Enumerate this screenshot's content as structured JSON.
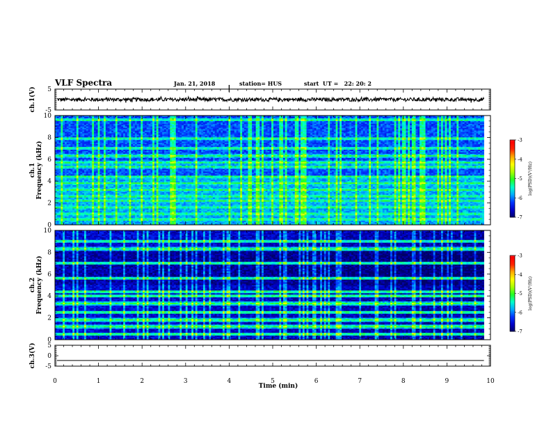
{
  "header": {
    "title": "VLF Spectra",
    "date": "Jan. 21, 2018",
    "station": "station= HUS",
    "start": "start  UT =   22: 20: 2"
  },
  "chart_data": [
    {
      "type": "line",
      "panel": "ch1-waveform",
      "ylabel": "ch.1(V)",
      "ylim": [
        -5,
        5
      ],
      "yticks": [
        "5",
        "-5"
      ],
      "xlim": [
        0,
        10
      ],
      "x_end": 9.85,
      "baseline": 0,
      "noise_amplitude": 0.9
    },
    {
      "type": "heatmap",
      "panel": "ch1-spectrogram",
      "ylabel": "ch.1\nFrequency (kHz)",
      "ylim": [
        0,
        10
      ],
      "yticks": [
        "0",
        "2",
        "4",
        "6",
        "8",
        "10"
      ],
      "xlim": [
        0,
        10
      ],
      "x_end": 9.85,
      "tones_khz": [
        0.5,
        1.0,
        1.6,
        2.2,
        2.6,
        3.2,
        3.8,
        4.4,
        5.3,
        5.7,
        6.3,
        7.0,
        7.9,
        9.6
      ],
      "colorbar": {
        "label": "log(PSD)(V²/Hz)",
        "range": [
          -7,
          -3
        ],
        "ticks": [
          "-3",
          "-4",
          "-5",
          "-6",
          "-7"
        ]
      }
    },
    {
      "type": "heatmap",
      "panel": "ch2-spectrogram",
      "ylabel": "ch.2\nFrequency (kHz)",
      "ylim": [
        0,
        10
      ],
      "yticks": [
        "0",
        "2",
        "4",
        "6",
        "8",
        "10"
      ],
      "xlim": [
        0,
        10
      ],
      "x_end": 9.85,
      "tones_khz": [
        0.5,
        1.2,
        1.8,
        2.5,
        3.3,
        4.0,
        4.4,
        5.6,
        7.0,
        8.3,
        9.0
      ],
      "colorbar": {
        "label": "log(PSD)(V²/Hz)",
        "range": [
          -7,
          -3
        ],
        "ticks": [
          "-3",
          "-4",
          "-5",
          "-6",
          "-7"
        ]
      }
    },
    {
      "type": "line",
      "panel": "ch3-waveform",
      "ylabel": "ch.3(V)",
      "ylim": [
        -5,
        5
      ],
      "yticks": [
        "5",
        "0",
        "-5"
      ],
      "xlim": [
        0,
        10
      ],
      "x_end": 9.85,
      "baseline": -2.3
    }
  ],
  "xaxis": {
    "label": "Time (min)",
    "ticks": [
      "0",
      "1",
      "2",
      "3",
      "4",
      "5",
      "6",
      "7",
      "8",
      "9",
      "10"
    ]
  },
  "colors": {
    "colormap": [
      "#000066",
      "#0000c8",
      "#0033ff",
      "#00aaff",
      "#00ffcc",
      "#22ff22",
      "#aaff00",
      "#ffff00",
      "#ffaa00",
      "#ff2200",
      "#ff0000",
      "#ffffff"
    ]
  }
}
